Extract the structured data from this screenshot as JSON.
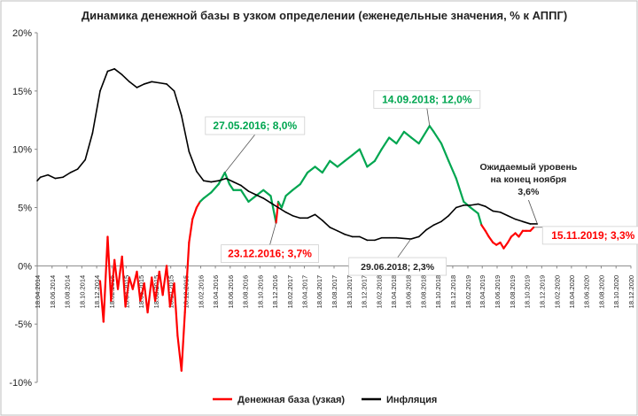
{
  "chart_data": {
    "type": "line",
    "title": "Динамика денежной базы в узком определении (еженедельные значения, % к АППГ)",
    "xlabel": "",
    "ylabel": "",
    "ylim": [
      -10,
      20
    ],
    "yticks": [
      "20%",
      "15%",
      "10%",
      "5%",
      "0%",
      "-5%",
      "-10%"
    ],
    "ytick_values": [
      20,
      15,
      10,
      5,
      0,
      -5,
      -10
    ],
    "xlim": [
      "18.04.2014",
      "18.12.2020"
    ],
    "xticks": [
      "18.04.2014",
      "18.06.2014",
      "18.08.2014",
      "18.10.2014",
      "18.12.2014",
      "18.02.2015",
      "18.04.2015",
      "18.06.2015",
      "18.08.2015",
      "18.10.2015",
      "18.12.2015",
      "18.02.2016",
      "18.04.2016",
      "18.06.2016",
      "18.08.2016",
      "18.10.2016",
      "18.12.2016",
      "18.02.2017",
      "18.04.2017",
      "18.06.2017",
      "18.08.2017",
      "18.10.2017",
      "18.12.2017",
      "18.02.2018",
      "18.04.2018",
      "18.06.2018",
      "18.08.2018",
      "18.10.2018",
      "18.12.2018",
      "18.02.2019",
      "18.04.2019",
      "18.06.2019",
      "18.08.2019",
      "18.10.2019",
      "18.12.2019",
      "18.02.2020",
      "18.04.2020",
      "18.06.2020",
      "18.08.2020",
      "18.10.2020",
      "18.12.2020"
    ],
    "grid": false,
    "legend": "bottom",
    "series": [
      {
        "name": "Денежная база (узкая)",
        "color": "#ff0000",
        "x": [
          "18.04.2014",
          "18.05.2014",
          "18.06.2014",
          "18.07.2014",
          "18.08.2014",
          "18.09.2014",
          "18.10.2014",
          "18.11.2014",
          "18.12.2014",
          "01.01.2015",
          "15.01.2015",
          "01.02.2015",
          "15.02.2015",
          "01.03.2015",
          "15.03.2015",
          "01.04.2015",
          "15.04.2015",
          "01.05.2015",
          "15.05.2015",
          "01.06.2015",
          "15.06.2015",
          "01.07.2015",
          "15.07.2015",
          "01.08.2015",
          "15.08.2015",
          "01.09.2015",
          "15.09.2015",
          "01.10.2015",
          "15.10.2015",
          "01.11.2015",
          "15.11.2015",
          "01.12.2015",
          "15.12.2015",
          "01.01.2016",
          "15.01.2016",
          "01.02.2016",
          "15.02.2016",
          "01.03.2016",
          "01.04.2016",
          "01.05.2016",
          "27.05.2016",
          "15.06.2016",
          "01.07.2016",
          "01.08.2016",
          "01.09.2016",
          "01.10.2016",
          "01.11.2016",
          "01.12.2016",
          "23.12.2016",
          "01.01.2017",
          "15.01.2017",
          "01.02.2017",
          "01.03.2017",
          "01.04.2017",
          "01.05.2017",
          "01.06.2017",
          "01.07.2017",
          "01.08.2017",
          "01.09.2017",
          "01.10.2017",
          "01.11.2017",
          "01.12.2017",
          "01.01.2018",
          "01.02.2018",
          "01.03.2018",
          "01.04.2018",
          "01.05.2018",
          "01.06.2018",
          "01.07.2018",
          "01.08.2018",
          "14.09.2018",
          "01.10.2018",
          "01.11.2018",
          "01.12.2018",
          "01.01.2019",
          "01.02.2019",
          "01.03.2019",
          "01.04.2019",
          "15.04.2019",
          "01.05.2019",
          "15.05.2019",
          "01.06.2019",
          "15.06.2019",
          "01.07.2019",
          "15.07.2019",
          "01.08.2019",
          "15.08.2019",
          "01.09.2019",
          "15.09.2019",
          "01.10.2019",
          "15.10.2019",
          "01.11.2019",
          "15.11.2019"
        ],
        "values": [
          null,
          null,
          null,
          null,
          null,
          null,
          null,
          null,
          null,
          -1.3,
          -4.8,
          2.5,
          -3.0,
          0.5,
          -2.0,
          0.8,
          -3.5,
          -1.0,
          -2.0,
          -0.5,
          -3.0,
          -1.5,
          -4.0,
          -1.0,
          -3.0,
          -0.5,
          -2.5,
          0.0,
          -3.5,
          -1.5,
          -6.0,
          -9.0,
          -4.0,
          2.0,
          4.0,
          5.0,
          5.5,
          5.8,
          6.3,
          7.0,
          8.0,
          7.0,
          6.5,
          6.5,
          5.5,
          6.0,
          6.5,
          6.0,
          3.7,
          5.5,
          5.0,
          6.0,
          6.5,
          7.0,
          8.0,
          8.5,
          8.0,
          9.0,
          8.5,
          9.0,
          9.5,
          10.0,
          8.5,
          9.0,
          10.0,
          11.0,
          10.5,
          11.5,
          11.0,
          10.5,
          12.0,
          11.5,
          10.5,
          9.0,
          7.5,
          5.5,
          5.0,
          4.5,
          3.5,
          3.0,
          2.5,
          2.0,
          1.8,
          2.0,
          1.5,
          2.0,
          2.5,
          2.8,
          2.5,
          3.0,
          3.0,
          3.0,
          3.3
        ]
      },
      {
        "name": "Инфляция",
        "color": "#000000",
        "x": [
          "18.04.2014",
          "01.05.2014",
          "01.06.2014",
          "01.07.2014",
          "01.08.2014",
          "01.09.2014",
          "01.10.2014",
          "01.11.2014",
          "01.12.2014",
          "01.01.2015",
          "01.02.2015",
          "01.03.2015",
          "01.04.2015",
          "01.05.2015",
          "01.06.2015",
          "01.07.2015",
          "01.08.2015",
          "01.09.2015",
          "01.10.2015",
          "01.11.2015",
          "01.12.2015",
          "01.01.2016",
          "01.02.2016",
          "01.03.2016",
          "01.04.2016",
          "01.05.2016",
          "01.06.2016",
          "01.07.2016",
          "01.08.2016",
          "01.09.2016",
          "01.10.2016",
          "01.11.2016",
          "01.12.2016",
          "01.01.2017",
          "01.02.2017",
          "01.03.2017",
          "01.04.2017",
          "01.05.2017",
          "01.06.2017",
          "01.07.2017",
          "01.08.2017",
          "01.09.2017",
          "01.10.2017",
          "01.11.2017",
          "01.12.2017",
          "01.01.2018",
          "01.02.2018",
          "01.03.2018",
          "01.04.2018",
          "01.05.2018",
          "29.06.2018",
          "01.08.2018",
          "01.09.2018",
          "01.10.2018",
          "01.11.2018",
          "01.12.2018",
          "01.01.2019",
          "01.02.2019",
          "01.03.2019",
          "01.04.2019",
          "01.05.2019",
          "01.06.2019",
          "01.07.2019",
          "01.08.2019",
          "01.09.2019",
          "01.10.2019",
          "01.11.2019",
          "30.11.2019"
        ],
        "values": [
          7.3,
          7.6,
          7.8,
          7.5,
          7.6,
          8.0,
          8.3,
          9.1,
          11.4,
          15.0,
          16.7,
          16.9,
          16.4,
          15.8,
          15.3,
          15.6,
          15.8,
          15.7,
          15.6,
          15.0,
          12.9,
          9.8,
          8.1,
          7.3,
          7.2,
          7.3,
          7.5,
          7.2,
          6.9,
          6.4,
          6.1,
          5.8,
          5.4,
          5.0,
          4.6,
          4.3,
          4.1,
          4.1,
          4.4,
          3.9,
          3.3,
          3.0,
          2.7,
          2.5,
          2.5,
          2.2,
          2.2,
          2.4,
          2.4,
          2.4,
          2.3,
          2.5,
          3.1,
          3.5,
          3.8,
          4.3,
          5.0,
          5.2,
          5.2,
          5.3,
          5.1,
          4.7,
          4.6,
          4.3,
          4.0,
          3.8,
          3.6,
          3.6
        ]
      }
    ],
    "annotations": [
      {
        "text": "27.05.2016; 8,0%",
        "x": "27.05.2016",
        "y": 8.0,
        "color": "#00a650"
      },
      {
        "text": "14.09.2018; 12,0%",
        "x": "14.09.2018",
        "y": 12.0,
        "color": "#00a650"
      },
      {
        "text": "23.12.2016; 3,7%",
        "x": "23.12.2016",
        "y": 3.7,
        "color": "#ff0000"
      },
      {
        "text": "15.11.2019; 3,3%",
        "x": "15.11.2019",
        "y": 3.3,
        "color": "#ff0000"
      },
      {
        "text": "29.06.2018; 2,3%",
        "x": "29.06.2018",
        "y": 2.3,
        "color": "#000000"
      },
      {
        "text": "Ожидаемый уровень на конец ноября 3,6%",
        "lines": [
          "Ожидаемый уровень",
          "на конец ноября",
          "3,6%"
        ],
        "x": "30.11.2019",
        "y": 3.6,
        "color": "#000000"
      }
    ],
    "green_segments": [
      [
        "15.02.2016",
        "23.12.2016"
      ],
      [
        "01.01.2017",
        "15.04.2019"
      ]
    ]
  }
}
